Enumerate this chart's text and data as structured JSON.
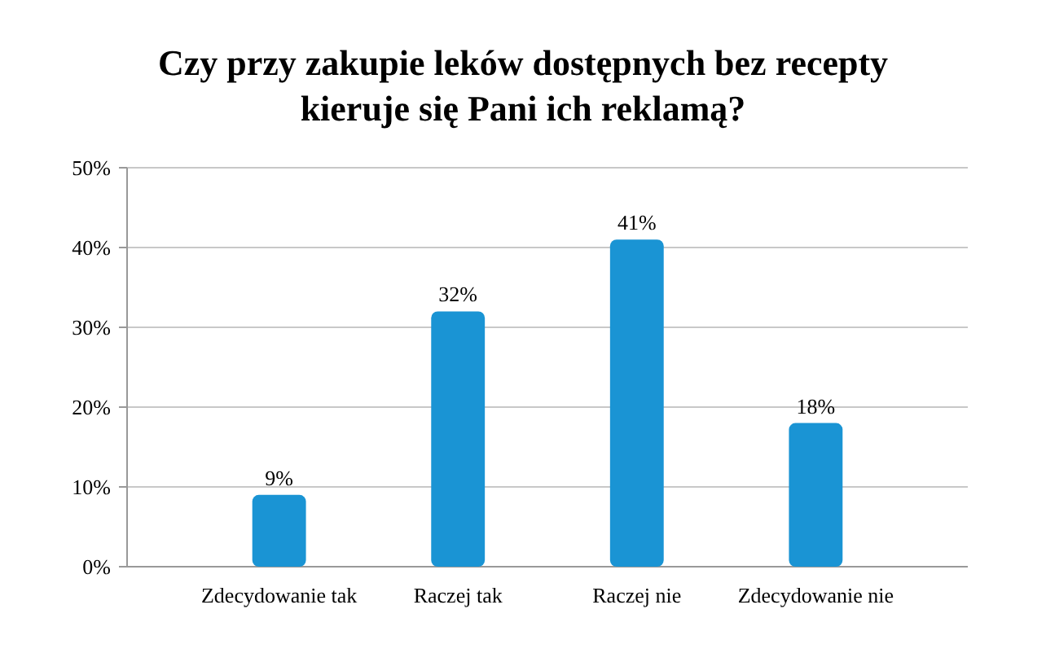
{
  "chart_data": {
    "type": "bar",
    "title": "Czy przy zakupie leków dostępnych bez recepty kieruje się Pani ich reklamą?",
    "categories": [
      "Zdecydowanie tak",
      "Raczej tak",
      "Raczej nie",
      "Zdecydowanie nie"
    ],
    "values": [
      9,
      32,
      41,
      18
    ],
    "value_labels": [
      "9%",
      "32%",
      "41%",
      "18%"
    ],
    "color": "#1a94d4",
    "ylim": [
      0,
      50
    ],
    "yticks": [
      {
        "value": 0,
        "label": "0%"
      },
      {
        "value": 10,
        "label": "10%"
      },
      {
        "value": 20,
        "label": "20%"
      },
      {
        "value": 30,
        "label": "30%"
      },
      {
        "value": 40,
        "label": "40%"
      },
      {
        "value": 50,
        "label": "50%"
      }
    ],
    "grid": "y"
  }
}
